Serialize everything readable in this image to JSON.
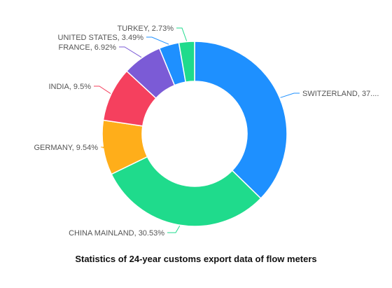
{
  "chart_data": {
    "type": "pie",
    "variant": "donut",
    "title": "Statistics of 24-year customs export data of flow meters",
    "legend": "none",
    "slices": [
      {
        "label": "SWITZERLAND, 37....",
        "category": "SWITZERLAND",
        "value": 37.29,
        "color": "#1E90FF"
      },
      {
        "label": "CHINA MAINLAND, 30.53%",
        "category": "CHINA MAINLAND",
        "value": 30.53,
        "color": "#1FDB8C"
      },
      {
        "label": "GERMANY, 9.54%",
        "category": "GERMANY",
        "value": 9.54,
        "color": "#FFAE1A"
      },
      {
        "label": "INDIA, 9.5%",
        "category": "INDIA",
        "value": 9.5,
        "color": "#F5405E"
      },
      {
        "label": "FRANCE, 6.92%",
        "category": "FRANCE",
        "value": 6.92,
        "color": "#7B5BD6"
      },
      {
        "label": "UNITED STATES, 3.49%",
        "category": "UNITED STATES",
        "value": 3.49,
        "color": "#1E90FF"
      },
      {
        "label": "TURKEY, 2.73%",
        "category": "TURKEY",
        "value": 2.73,
        "color": "#1FDB8C"
      }
    ]
  }
}
